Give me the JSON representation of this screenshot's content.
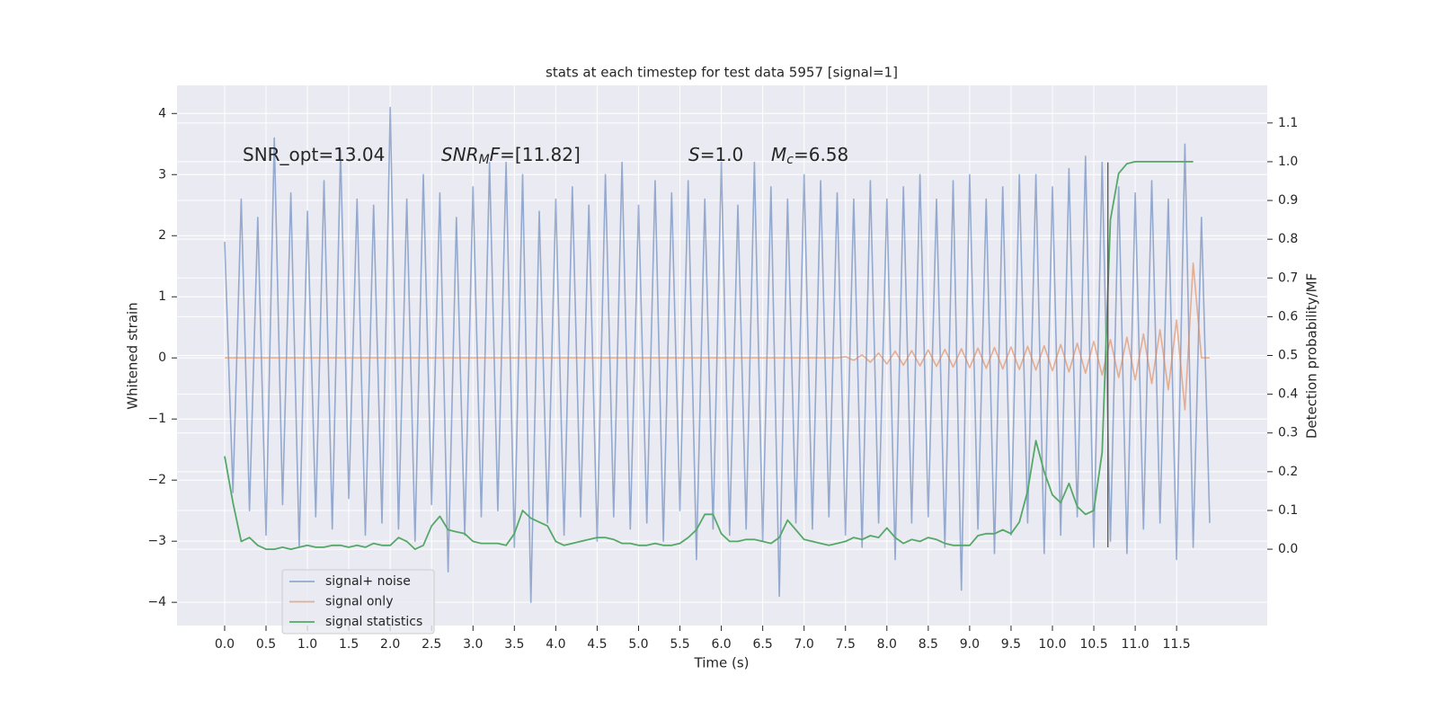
{
  "chart_data": {
    "type": "line",
    "title": "stats at each timestep for test data 5957 [signal=1]",
    "xlabel": "Time (s)",
    "ylabel": "Whitened strain",
    "y2label": "Detection probability/MF",
    "grid": true,
    "legend": "lower left",
    "annotations": [
      {
        "parts": [
          {
            "text": "SNR_opt=13.04"
          }
        ]
      },
      {
        "parts": [
          {
            "text": "SNR",
            "italic": true
          },
          {
            "text": "M",
            "italic": true,
            "sub": true
          },
          {
            "text": "F",
            "italic": true
          },
          {
            "text": "=[11.82]"
          }
        ]
      },
      {
        "parts": [
          {
            "text": "S",
            "italic": true
          },
          {
            "text": "=1.0"
          }
        ]
      },
      {
        "parts": [
          {
            "text": "M",
            "italic": true
          },
          {
            "text": "c",
            "italic": true,
            "sub": true
          },
          {
            "text": "=6.58"
          }
        ]
      }
    ],
    "marker_x": 10.67,
    "marker_range": [
      -3.1,
      3.2
    ],
    "marker_color": "#555555",
    "xlim": [
      -0.575,
      12.595
    ],
    "xticks": [
      {
        "value": 0,
        "label": "0.0"
      },
      0.5,
      {
        "value": 1,
        "label": "1.0"
      },
      1.5,
      {
        "value": 2,
        "label": "2.0"
      },
      2.5,
      {
        "value": 3,
        "label": "3.0"
      },
      3.5,
      {
        "value": 4,
        "label": "4.0"
      },
      4.5,
      {
        "value": 5,
        "label": "5.0"
      },
      5.5,
      {
        "value": 6,
        "label": "6.0"
      },
      6.5,
      {
        "value": 7,
        "label": "7.0"
      },
      7.5,
      {
        "value": 8,
        "label": "8.0"
      },
      8.5,
      {
        "value": 9,
        "label": "9.0"
      },
      9.5,
      {
        "value": 10,
        "label": "10.0"
      },
      10.5,
      {
        "value": 11,
        "label": "11.0"
      },
      11.5
    ],
    "ylim": [
      -4.38,
      4.46
    ],
    "yticks": [
      {
        "value": -4,
        "label": "−4"
      },
      {
        "value": -3,
        "label": "−3"
      },
      {
        "value": -2,
        "label": "−2"
      },
      {
        "value": -1,
        "label": "−1"
      },
      0,
      1,
      2,
      3,
      4
    ],
    "y2lim": [
      -0.197,
      1.197
    ],
    "y2ticks": [
      {
        "value": 0,
        "label": "0.0"
      },
      0.1,
      0.2,
      0.3,
      0.4,
      0.5,
      0.6,
      0.7,
      0.8,
      0.9,
      {
        "value": 1,
        "label": "1.0"
      },
      1.1
    ],
    "x": [
      0,
      0.1,
      0.2,
      0.3,
      0.4,
      0.5,
      0.6,
      0.7,
      0.8,
      0.9,
      1,
      1.1,
      1.2,
      1.3,
      1.4,
      1.5,
      1.6,
      1.7,
      1.8,
      1.9,
      2,
      2.1,
      2.2,
      2.3,
      2.4,
      2.5,
      2.6,
      2.7,
      2.8,
      2.9,
      3,
      3.1,
      3.2,
      3.3,
      3.4,
      3.5,
      3.6,
      3.7,
      3.8,
      3.9,
      4,
      4.1,
      4.2,
      4.3,
      4.4,
      4.5,
      4.6,
      4.7,
      4.8,
      4.9,
      5,
      5.1,
      5.2,
      5.3,
      5.4,
      5.5,
      5.6,
      5.7,
      5.8,
      5.9,
      6,
      6.1,
      6.2,
      6.3,
      6.4,
      6.5,
      6.6,
      6.7,
      6.8,
      6.9,
      7,
      7.1,
      7.2,
      7.3,
      7.4,
      7.5,
      7.6,
      7.7,
      7.8,
      7.9,
      8,
      8.1,
      8.2,
      8.3,
      8.4,
      8.5,
      8.6,
      8.7,
      8.8,
      8.9,
      9,
      9.1,
      9.2,
      9.3,
      9.4,
      9.5,
      9.6,
      9.7,
      9.8,
      9.9,
      10,
      10.1,
      10.2,
      10.3,
      10.4,
      10.5,
      10.6,
      10.7,
      10.8,
      10.9,
      11,
      11.1,
      11.2,
      11.3,
      11.4,
      11.5,
      11.6,
      11.7,
      11.8,
      11.9
    ],
    "series": [
      {
        "name": "signal+ noise",
        "color": "#4c72b0",
        "axis": "y",
        "values": [
          1.9,
          -2.2,
          2.6,
          -2.5,
          2.3,
          -2.9,
          3.6,
          -2.4,
          2.7,
          -3.1,
          2.4,
          -2.6,
          2.9,
          -2.8,
          3.4,
          -2.3,
          2.6,
          -2.9,
          2.5,
          -2.7,
          4.1,
          -2.8,
          2.6,
          -3.0,
          3.0,
          -2.4,
          2.7,
          -3.5,
          2.3,
          -2.9,
          2.8,
          -2.6,
          3.2,
          -2.5,
          3.2,
          -3.1,
          3.0,
          -4.0,
          2.4,
          -2.7,
          2.6,
          -2.9,
          2.8,
          -2.6,
          2.5,
          -3.0,
          3.0,
          -2.6,
          3.2,
          -2.8,
          2.5,
          -2.7,
          2.9,
          -3.0,
          2.7,
          -2.5,
          2.9,
          -3.3,
          2.6,
          -2.8,
          3.2,
          -2.9,
          2.5,
          -2.8,
          3.2,
          -3.0,
          2.8,
          -3.9,
          2.6,
          -2.7,
          3.0,
          -2.8,
          2.9,
          -2.6,
          2.7,
          -2.9,
          2.6,
          -3.1,
          2.9,
          -2.7,
          2.6,
          -3.3,
          2.8,
          -2.7,
          3.0,
          -2.6,
          2.6,
          -3.1,
          2.9,
          -3.8,
          3.0,
          -2.8,
          2.6,
          -3.2,
          2.8,
          -2.9,
          3.0,
          -2.7,
          3.0,
          -3.2,
          2.8,
          -2.9,
          3.1,
          -2.6,
          3.3,
          -3.1,
          3.2,
          -3.0,
          2.8,
          -3.2,
          2.7,
          -2.8,
          2.9,
          -2.7,
          2.6,
          -3.3,
          3.5,
          -3.1,
          2.3,
          -2.7
        ]
      },
      {
        "name": "signal only",
        "color": "#dd8452",
        "axis": "y",
        "values": [
          0,
          0,
          0,
          0,
          0,
          0,
          0,
          0,
          0,
          0,
          0,
          0,
          0,
          0,
          0,
          0,
          0,
          0,
          0,
          0,
          0,
          0,
          0,
          0,
          0,
          0,
          0,
          0,
          0,
          0,
          0,
          0,
          0,
          0,
          0,
          0,
          0,
          0,
          0,
          0,
          0,
          0,
          0,
          0,
          0,
          0,
          0,
          0,
          0,
          0,
          0,
          0,
          0,
          0,
          0,
          0,
          0,
          0,
          0,
          0,
          0,
          0,
          0,
          0,
          0,
          0,
          0,
          0,
          0,
          0,
          0,
          0,
          0,
          0,
          0,
          0.02,
          -0.04,
          0.05,
          -0.07,
          0.08,
          -0.1,
          0.11,
          -0.12,
          0.12,
          -0.13,
          0.13,
          -0.14,
          0.14,
          -0.15,
          0.15,
          -0.16,
          0.16,
          -0.17,
          0.17,
          -0.18,
          0.18,
          -0.19,
          0.19,
          -0.2,
          0.2,
          -0.21,
          0.22,
          -0.23,
          0.24,
          -0.25,
          0.27,
          -0.28,
          0.3,
          -0.32,
          0.34,
          -0.36,
          0.39,
          -0.42,
          0.46,
          -0.52,
          0.62,
          -0.85,
          1.55,
          0,
          0
        ]
      },
      {
        "name": "signal statistics",
        "color": "#55a868",
        "axis": "y2",
        "values": [
          0.24,
          0.12,
          0.02,
          0.03,
          0.01,
          0,
          0,
          0.005,
          0,
          0.005,
          0.01,
          0.005,
          0.005,
          0.01,
          0.01,
          0.005,
          0.01,
          0.005,
          0.015,
          0.01,
          0.01,
          0.03,
          0.02,
          0,
          0.01,
          0.06,
          0.085,
          0.05,
          0.045,
          0.04,
          0.02,
          0.015,
          0.015,
          0.015,
          0.01,
          0.04,
          0.1,
          0.08,
          0.07,
          0.06,
          0.02,
          0.01,
          0.015,
          0.02,
          0.025,
          0.03,
          0.03,
          0.025,
          0.015,
          0.015,
          0.01,
          0.01,
          0.015,
          0.01,
          0.01,
          0.015,
          0.03,
          0.05,
          0.09,
          0.09,
          0.04,
          0.02,
          0.02,
          0.025,
          0.025,
          0.02,
          0.015,
          0.03,
          0.075,
          0.05,
          0.025,
          0.02,
          0.015,
          0.01,
          0.015,
          0.02,
          0.03,
          0.025,
          0.035,
          0.03,
          0.055,
          0.03,
          0.015,
          0.025,
          0.02,
          0.03,
          0.025,
          0.015,
          0.01,
          0.01,
          0.01,
          0.035,
          0.04,
          0.04,
          0.05,
          0.04,
          0.07,
          0.15,
          0.28,
          0.2,
          0.14,
          0.12,
          0.17,
          0.11,
          0.09,
          0.1,
          0.25,
          0.85,
          0.97,
          0.995,
          1,
          1,
          1,
          1,
          1,
          1,
          1,
          1,
          null,
          null
        ]
      }
    ]
  }
}
